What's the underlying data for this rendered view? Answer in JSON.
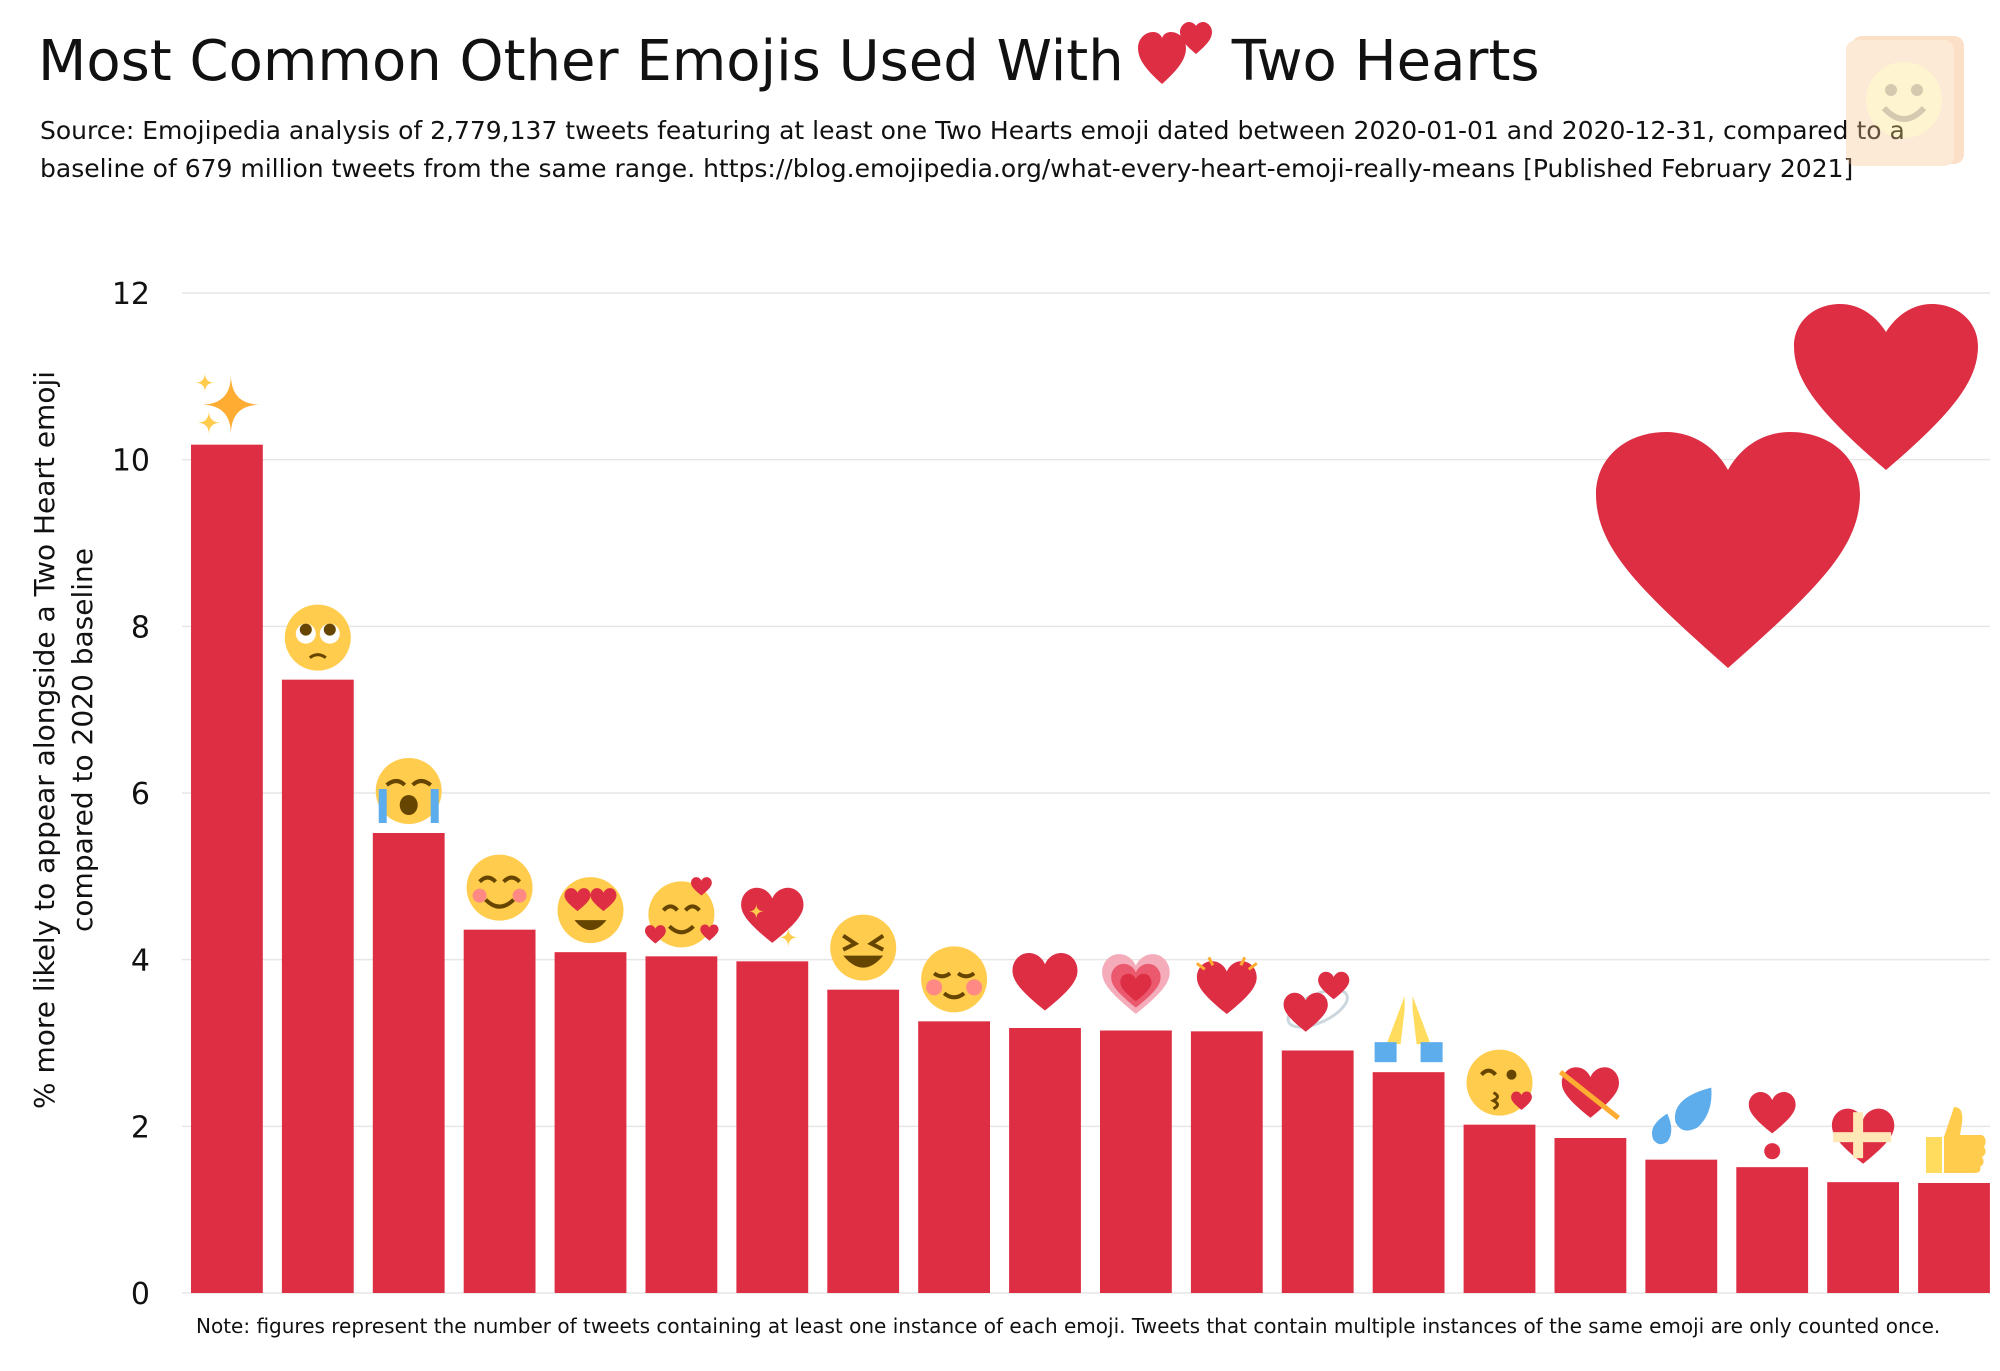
{
  "title": {
    "before": "Most Common Other Emojis Used With",
    "after": "Two Hearts",
    "emoji_icon": "two-hearts-icon"
  },
  "subtitle": "Source: Emojipedia analysis of 2,779,137 tweets featuring at least one Two Hearts emoji dated between 2020-01-01 and 2020-12-31, compared to a baseline of 679 million tweets from the same range. https://blog.emojipedia.org/what-every-heart-emoji-really-means [Published February 2021]",
  "note": "Note: figures represent the number of tweets containing at least one instance of each emoji. Tweets that contain multiple instances of the same emoji are only counted once.",
  "logo_icon": "emojipedia-book-logo-icon",
  "colors": {
    "bar": "#DD2E44",
    "grid": "#e6e6e6",
    "background": "#ffffff"
  },
  "chart_data": {
    "type": "bar",
    "title": "Most Common Other Emojis Used With Two Hearts",
    "ylabel_line1": "% more likely to appear alongside a Two Heart emoji",
    "ylabel_line2": "compared to 2020 baseline",
    "xlabel": "",
    "ylim": [
      0,
      12
    ],
    "yticks": [
      0,
      2,
      4,
      6,
      8,
      10,
      12
    ],
    "grid": true,
    "categories": [
      "sparkles-icon",
      "pleading-face-icon",
      "loudly-crying-face-icon",
      "smiling-face-with-smiling-eyes-icon",
      "smiling-face-with-heart-eyes-icon",
      "smiling-face-with-hearts-icon",
      "sparkling-heart-icon",
      "grinning-squinting-face-icon",
      "smiling-face-icon",
      "red-heart-icon",
      "growing-heart-icon",
      "beating-heart-icon",
      "revolving-hearts-icon",
      "folded-hands-icon",
      "face-blowing-a-kiss-icon",
      "heart-with-arrow-icon",
      "sweat-droplets-icon",
      "heart-exclamation-icon",
      "heart-with-ribbon-icon",
      "thumbs-up-icon"
    ],
    "values": [
      10.18,
      7.36,
      5.52,
      4.36,
      4.09,
      4.04,
      3.98,
      3.64,
      3.26,
      3.18,
      3.15,
      3.14,
      2.91,
      2.65,
      2.02,
      1.86,
      1.6,
      1.51,
      1.33,
      1.32
    ]
  }
}
